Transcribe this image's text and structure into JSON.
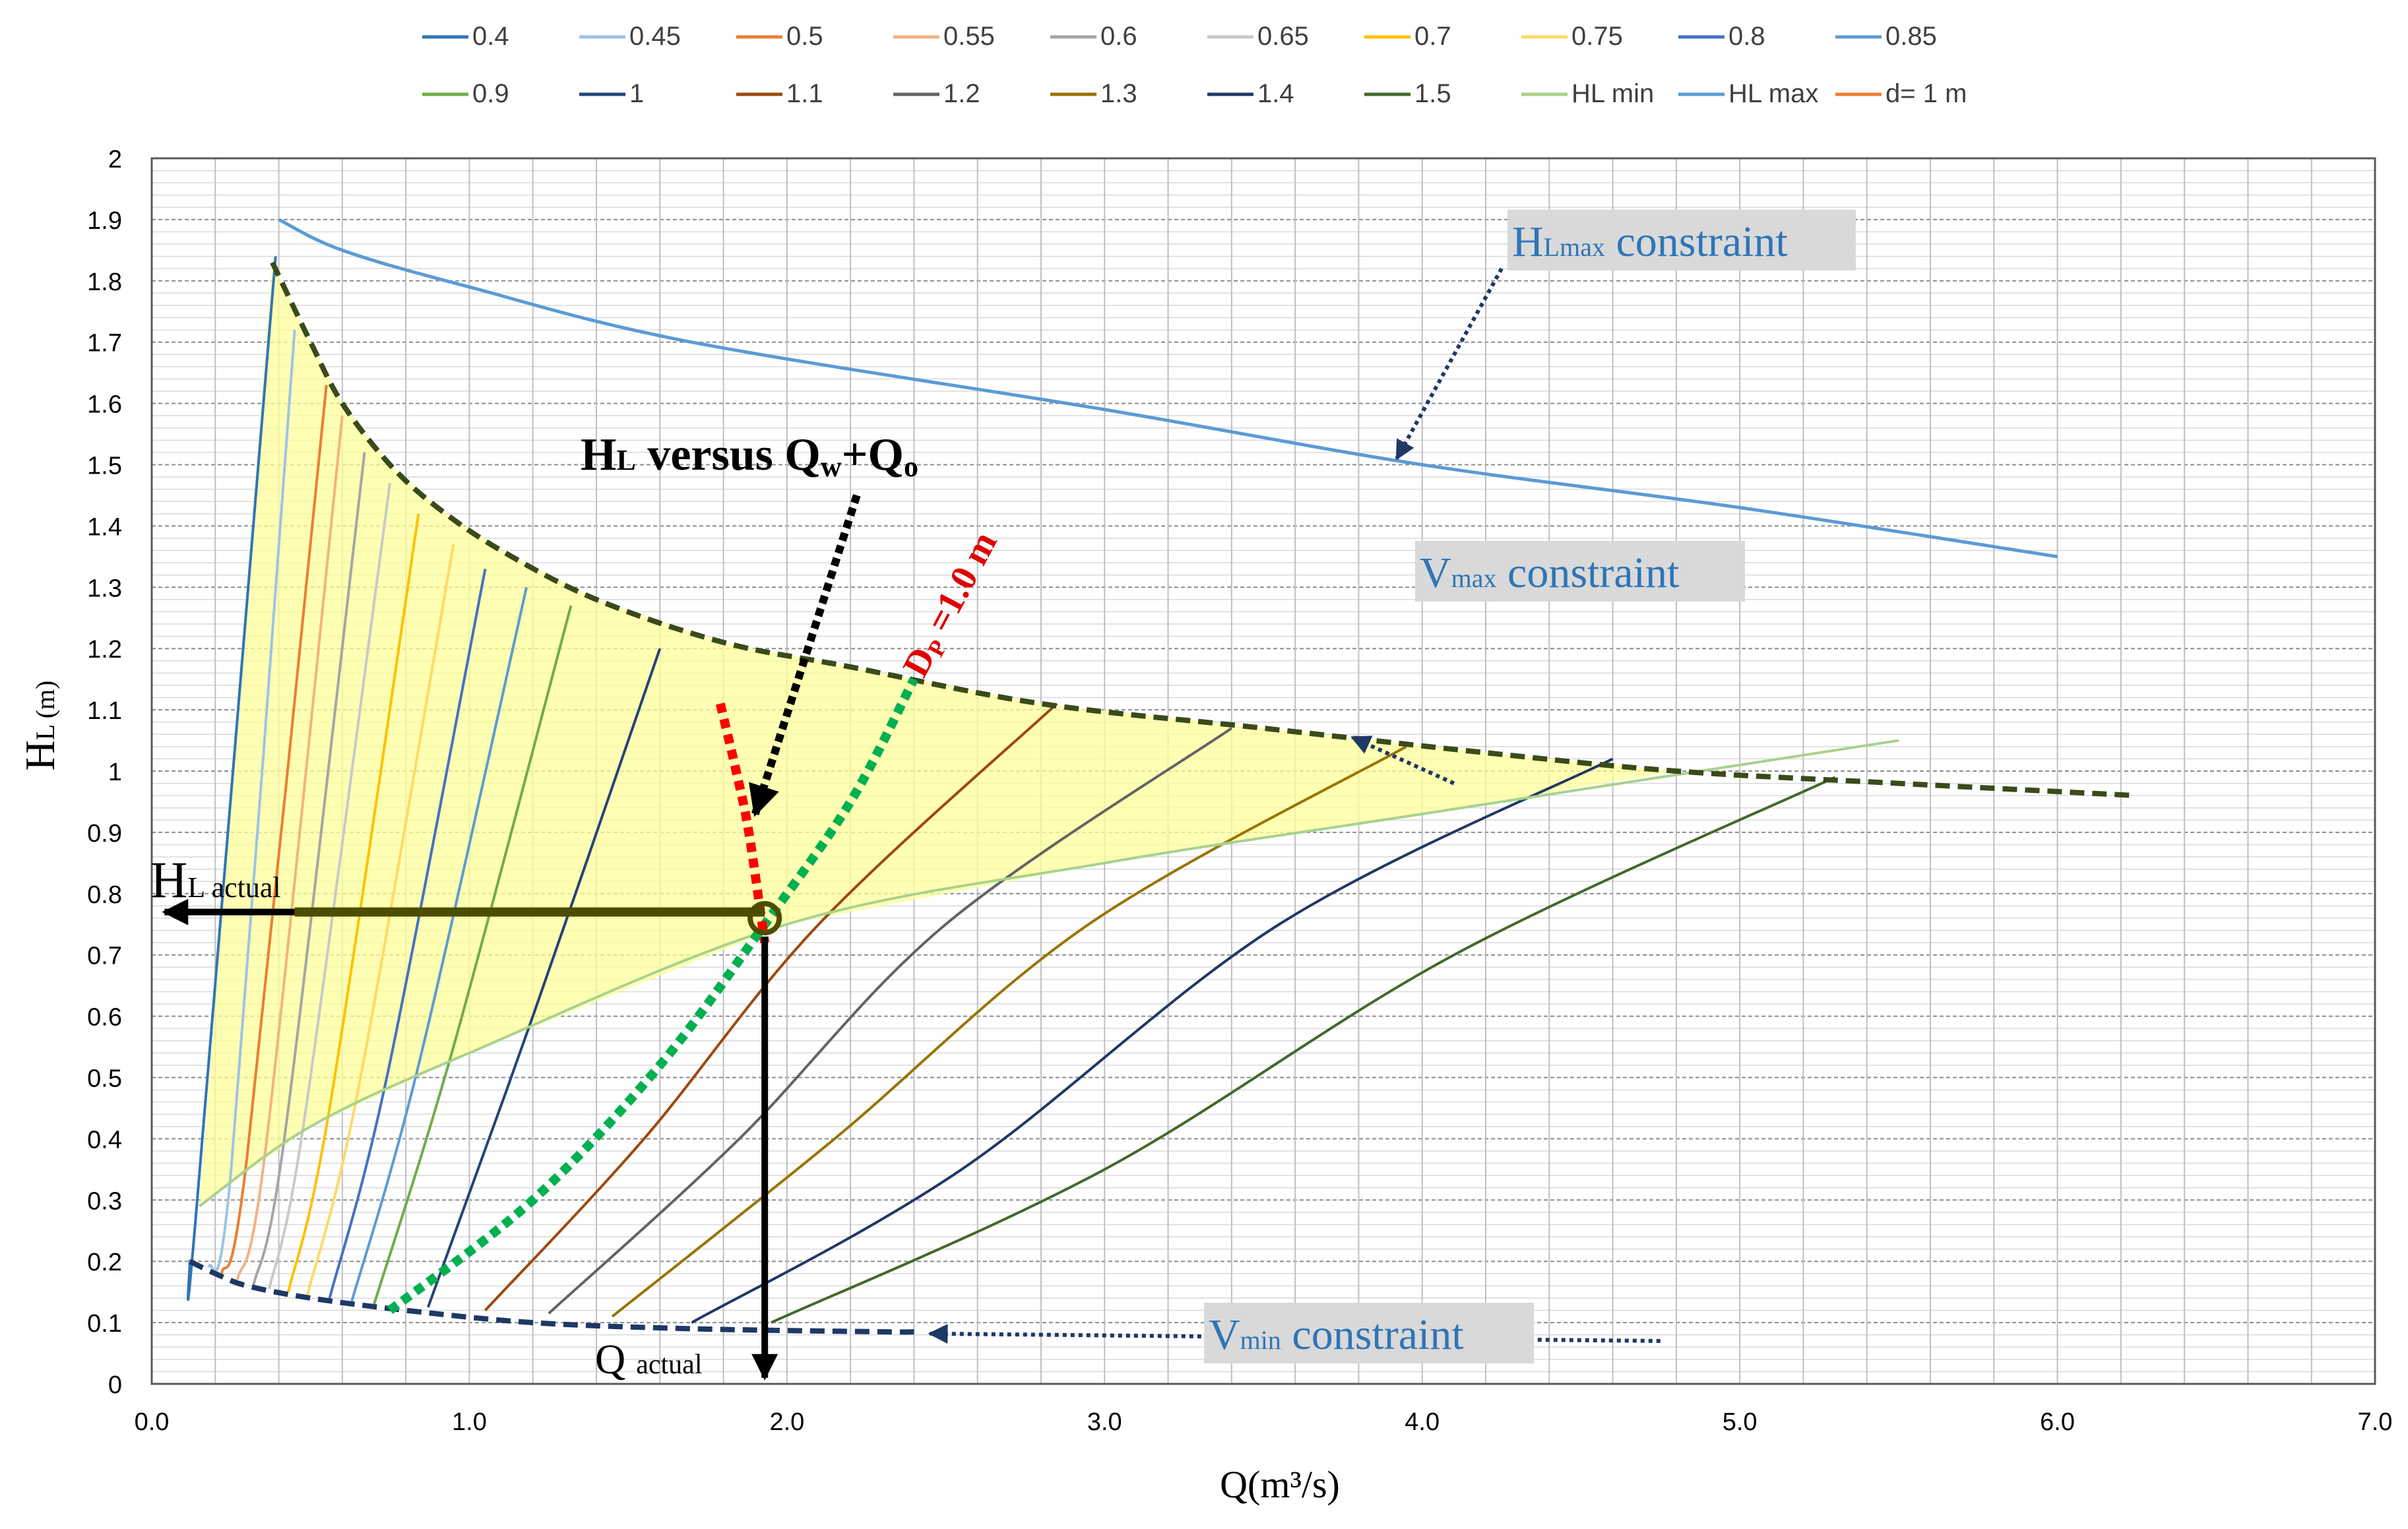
{
  "chart_data": {
    "type": "line",
    "xlabel": "Q(m³/s)",
    "ylabel_main": "H",
    "ylabel_sub": "L (m)",
    "xlim": [
      0,
      7
    ],
    "ylim": [
      0,
      2
    ],
    "x_ticks": [
      "0.0",
      "1.0",
      "2.0",
      "3.0",
      "4.0",
      "5.0",
      "6.0",
      "7.0"
    ],
    "y_ticks": [
      "0",
      "0.1",
      "0.2",
      "0.3",
      "0.4",
      "0.5",
      "0.6",
      "0.7",
      "0.8",
      "0.9",
      "1",
      "1.1",
      "1.2",
      "1.3",
      "1.4",
      "1.5",
      "1.6",
      "1.7",
      "1.8",
      "1.9",
      "2"
    ],
    "grid": true,
    "legend_position": "top",
    "series": [
      {
        "name": "0.4",
        "color": "#2e75b6",
        "points": [
          [
            0.12,
            0.2
          ],
          [
            0.14,
            0.28
          ],
          [
            0.39,
            1.84
          ]
        ]
      },
      {
        "name": "0.45",
        "color": "#9dc3e6",
        "points": [
          [
            0.18,
            0.19
          ],
          [
            0.25,
            0.35
          ],
          [
            0.45,
            1.72
          ]
        ]
      },
      {
        "name": "0.5",
        "color": "#ed7d31",
        "points": [
          [
            0.22,
            0.18
          ],
          [
            0.3,
            0.37
          ],
          [
            0.55,
            1.63
          ]
        ]
      },
      {
        "name": "0.55",
        "color": "#f4b183",
        "points": [
          [
            0.27,
            0.17
          ],
          [
            0.36,
            0.39
          ],
          [
            0.6,
            1.58
          ]
        ]
      },
      {
        "name": "0.6",
        "color": "#a5a5a5",
        "points": [
          [
            0.32,
            0.16
          ],
          [
            0.42,
            0.41
          ],
          [
            0.67,
            1.52
          ]
        ]
      },
      {
        "name": "0.65",
        "color": "#c9c9c9",
        "points": [
          [
            0.37,
            0.155
          ],
          [
            0.48,
            0.43
          ],
          [
            0.75,
            1.47
          ]
        ]
      },
      {
        "name": "0.7",
        "color": "#ffc000",
        "points": [
          [
            0.43,
            0.15
          ],
          [
            0.56,
            0.45
          ],
          [
            0.84,
            1.42
          ]
        ]
      },
      {
        "name": "0.75",
        "color": "#ffd966",
        "points": [
          [
            0.49,
            0.145
          ],
          [
            0.65,
            0.48
          ],
          [
            0.95,
            1.37
          ]
        ]
      },
      {
        "name": "0.8",
        "color": "#4472c4",
        "points": [
          [
            0.56,
            0.14
          ],
          [
            0.74,
            0.5
          ],
          [
            1.05,
            1.33
          ]
        ]
      },
      {
        "name": "0.85",
        "color": "#5b9bd5",
        "points": [
          [
            0.63,
            0.135
          ],
          [
            0.84,
            0.52
          ],
          [
            1.18,
            1.3
          ]
        ]
      },
      {
        "name": "0.9",
        "color": "#70ad47",
        "points": [
          [
            0.7,
            0.13
          ],
          [
            0.95,
            0.55
          ],
          [
            1.32,
            1.27
          ]
        ]
      },
      {
        "name": "1",
        "color": "#264478",
        "points": [
          [
            0.87,
            0.125
          ],
          [
            1.2,
            0.6
          ],
          [
            1.6,
            1.2
          ]
        ]
      },
      {
        "name": "1.1",
        "color": "#9e480e",
        "points": [
          [
            1.05,
            0.12
          ],
          [
            1.55,
            0.4
          ],
          [
            2.1,
            0.75
          ],
          [
            2.85,
            1.11
          ]
        ]
      },
      {
        "name": "1.2",
        "color": "#636363",
        "points": [
          [
            1.25,
            0.115
          ],
          [
            1.85,
            0.4
          ],
          [
            2.5,
            0.75
          ],
          [
            3.4,
            1.07
          ]
        ]
      },
      {
        "name": "1.3",
        "color": "#997300",
        "points": [
          [
            1.45,
            0.11
          ],
          [
            2.15,
            0.4
          ],
          [
            2.95,
            0.75
          ],
          [
            3.95,
            1.04
          ]
        ]
      },
      {
        "name": "1.4",
        "color": "#203864",
        "points": [
          [
            1.7,
            0.1
          ],
          [
            2.55,
            0.35
          ],
          [
            3.55,
            0.75
          ],
          [
            4.6,
            1.02
          ]
        ]
      },
      {
        "name": "1.5",
        "color": "#43682b",
        "points": [
          [
            1.95,
            0.1
          ],
          [
            3.0,
            0.35
          ],
          [
            4.1,
            0.7
          ],
          [
            5.3,
            0.99
          ]
        ]
      },
      {
        "name": "HL min",
        "color": "#a9d18e",
        "points": [
          [
            0.15,
            0.29
          ],
          [
            0.5,
            0.42
          ],
          [
            1.0,
            0.54
          ],
          [
            2.0,
            0.75
          ],
          [
            3.0,
            0.85
          ],
          [
            4.0,
            0.93
          ],
          [
            5.5,
            1.05
          ]
        ]
      },
      {
        "name": "HL max",
        "color": "#5b9bd5",
        "points": [
          [
            0.4,
            1.9
          ],
          [
            0.6,
            1.85
          ],
          [
            1.0,
            1.79
          ],
          [
            1.7,
            1.7
          ],
          [
            3.0,
            1.59
          ],
          [
            4.0,
            1.5
          ],
          [
            5.0,
            1.43
          ],
          [
            6.0,
            1.35
          ]
        ]
      },
      {
        "name": "d= 1 m",
        "color": "#ed7d31",
        "points": [
          [
            0.75,
            0.12
          ],
          [
            1.2,
            0.3
          ],
          [
            1.6,
            0.52
          ],
          [
            1.93,
            0.73
          ],
          [
            2.2,
            0.95
          ],
          [
            2.4,
            1.15
          ]
        ]
      }
    ],
    "boundaries": {
      "vmax": [
        [
          0.38,
          1.83
        ],
        [
          0.5,
          1.7
        ],
        [
          0.6,
          1.6
        ],
        [
          0.75,
          1.5
        ],
        [
          0.9,
          1.43
        ],
        [
          1.1,
          1.36
        ],
        [
          1.4,
          1.28
        ],
        [
          1.8,
          1.21
        ],
        [
          2.2,
          1.17
        ],
        [
          2.8,
          1.11
        ],
        [
          3.5,
          1.07
        ],
        [
          4.2,
          1.03
        ],
        [
          4.8,
          1.0
        ],
        [
          5.5,
          0.98
        ],
        [
          6.25,
          0.96
        ]
      ],
      "vmin": [
        [
          0.12,
          0.2
        ],
        [
          0.2,
          0.18
        ],
        [
          0.3,
          0.16
        ],
        [
          0.5,
          0.14
        ],
        [
          0.8,
          0.12
        ],
        [
          1.2,
          0.1
        ],
        [
          1.7,
          0.09
        ],
        [
          2.3,
          0.085
        ],
        [
          2.4,
          0.085
        ]
      ],
      "feasible_region_color": "#ffff99"
    },
    "markers": {
      "operating_point": [
        1.93,
        0.76
      ],
      "dp_line_red": [
        [
          1.79,
          1.11
        ],
        [
          1.84,
          1.0
        ],
        [
          1.88,
          0.9
        ],
        [
          1.93,
          0.72
        ]
      ],
      "dp_line_green": [
        [
          0.75,
          0.12
        ],
        [
          1.2,
          0.3
        ],
        [
          1.6,
          0.52
        ],
        [
          1.93,
          0.75
        ],
        [
          2.2,
          0.95
        ],
        [
          2.4,
          1.15
        ]
      ],
      "hl_actual_arrow": [
        [
          1.93,
          0.77
        ],
        [
          0.0,
          0.77
        ]
      ],
      "q_actual_arrow": [
        [
          1.93,
          0.77
        ],
        [
          1.93,
          0.0
        ]
      ]
    },
    "annotations": {
      "hl_versus_main": "H",
      "hl_versus_sub": "L",
      "hl_versus_mid": " versus Q",
      "hl_versus_w": "w",
      "hl_versus_plus": "+Q",
      "hl_versus_o": "o",
      "dp_main": "D",
      "dp_sub": "P",
      "dp_rest": " =1.0 m",
      "hl_actual_main": "H",
      "hl_actual_sub": "L actual",
      "q_actual_main": "Q ",
      "q_actual_sub": "actual",
      "hlmax_main": "H",
      "hlmax_sub": "Lmax",
      "hlmax_rest": " constraint",
      "vmax_main": "V",
      "vmax_sub": "max",
      "vmax_rest": " constraint",
      "vmin_main": "V",
      "vmin_sub": "min",
      "vmin_rest": " constraint"
    }
  }
}
